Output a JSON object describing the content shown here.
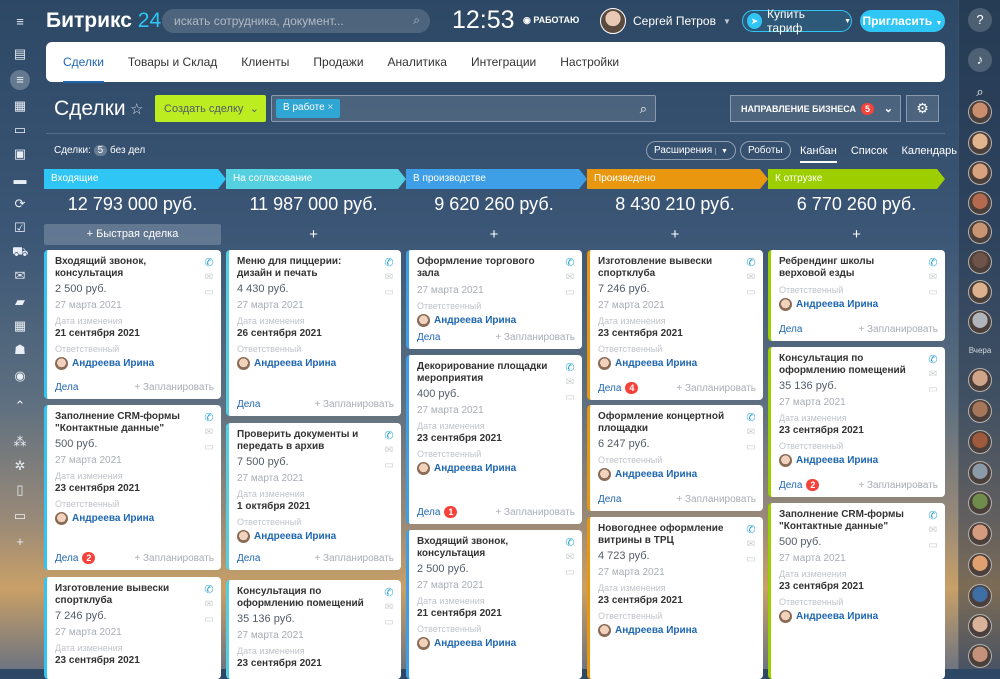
{
  "header": {
    "logo_main": "Битрикс",
    "logo_num": "24",
    "search_placeholder": "искать сотрудника, документ...",
    "clock": "12:53",
    "work_status": "РАБОТАЮ",
    "user_name": "Сергей Петров",
    "buy_label": "Купить тариф",
    "invite_label": "Пригласить"
  },
  "nav": {
    "tabs": [
      "Сделки",
      "Товары и Склад",
      "Клиенты",
      "Продажи",
      "Аналитика",
      "Интеграции",
      "Настройки"
    ]
  },
  "toolbar": {
    "title": "Сделки",
    "create_label": "Создать сделку",
    "filter_chip": "В работе",
    "direction_label": "НАПРАВЛЕНИЕ БИЗНЕСА",
    "direction_badge": "5",
    "count_label": "Сделки:",
    "count_value": "5",
    "count_suffix": "без дел",
    "extensions_label": "Расширения",
    "robots_label": "Роботы",
    "views": [
      "Канбан",
      "Список",
      "Календарь"
    ]
  },
  "right_sidebar": {
    "yesterday_label": "Вчера"
  },
  "quick_deal_label": "+ Быстрая сделка",
  "add_label": "+",
  "card_labels": {
    "changed": "Дата изменения",
    "responsible": "Ответственный",
    "tasks": "Дела",
    "plan": "+ Запланировать"
  },
  "columns": [
    {
      "name": "Входящие",
      "color": "#2fc6f6",
      "sum": "12 793 000 руб.",
      "cards": [
        {
          "title": "Входящий звонок, консультация",
          "amount": "2 500 руб.",
          "created": "27 марта 2021",
          "changed": "21 сентября 2021",
          "person": "Андреева Ирина",
          "badge": ""
        },
        {
          "title": "Заполнение CRM-формы \"Контактные данные\"",
          "amount": "500 руб.",
          "created": "27 марта 2021",
          "changed": "23 сентября 2021",
          "person": "Андреева Ирина",
          "badge": "2"
        },
        {
          "title": "Изготовление вывески спортклуба",
          "amount": "7 246 руб.",
          "created": "27 марта 2021",
          "changed": "23 сентября 2021",
          "person": "",
          "badge": ""
        }
      ]
    },
    {
      "name": "На согласование",
      "color": "#55d0e0",
      "sum": "11 987 000 руб.",
      "cards": [
        {
          "title": "Меню для пиццерии: дизайн и печать",
          "amount": "4 430 руб.",
          "created": "27 марта 2021",
          "changed": "26 сентября 2021",
          "person": "Андреева Ирина",
          "badge": ""
        },
        {
          "title": "Проверить документы и передать в архив",
          "amount": "7 500 руб.",
          "created": "27 марта 2021",
          "changed": "1 октября 2021",
          "person": "Андреева Ирина",
          "badge": ""
        },
        {
          "title": "Консультация по оформлению помещений",
          "amount": "35 136 руб.",
          "created": "27 марта 2021",
          "changed": "23 сентября 2021",
          "person": "",
          "badge": ""
        }
      ]
    },
    {
      "name": "В производстве",
      "color": "#3e9ee6",
      "sum": "9 620 260 руб.",
      "cards": [
        {
          "title": "Оформление торгового зала",
          "amount": "",
          "created": "27 марта 2021",
          "changed": "",
          "person": "Андреева Ирина",
          "badge": ""
        },
        {
          "title": "Декорирование площадки мероприятия",
          "amount": "400 руб.",
          "created": "27 марта 2021",
          "changed": "23 сентября 2021",
          "person": "Андреева Ирина",
          "badge": "1"
        },
        {
          "title": "Входящий звонок, консультация",
          "amount": "2 500 руб.",
          "created": "27 марта 2021",
          "changed": "21 сентября 2021",
          "person": "Андреева Ирина",
          "badge": ""
        }
      ]
    },
    {
      "name": "Произведено",
      "color": "#e8970f",
      "sum": "8 430 210 руб.",
      "cards": [
        {
          "title": "Изготовление вывески спортклуба",
          "amount": "7 246 руб.",
          "created": "27 марта 2021",
          "changed": "23 сентября 2021",
          "person": "Андреева Ирина",
          "badge": "4"
        },
        {
          "title": "Оформление концертной площадки",
          "amount": "6 247 руб.",
          "created": "",
          "changed": "",
          "person": "Андреева Ирина",
          "badge": ""
        },
        {
          "title": "Новогоднее оформление витрины в ТРЦ",
          "amount": "4 723 руб.",
          "created": "27 марта 2021",
          "changed": "23 сентября 2021",
          "person": "Андреева Ирина",
          "badge": ""
        }
      ]
    },
    {
      "name": "К отгрузке",
      "color": "#9dcf00",
      "sum": "6 770 260 руб.",
      "cards": [
        {
          "title": "Ребрендинг школы верховой езды",
          "amount": "",
          "created": "",
          "changed": "",
          "person": "Андреева Ирина",
          "badge": ""
        },
        {
          "title": "Консультация по оформлению помещений",
          "amount": "35 136 руб.",
          "created": "27 марта 2021",
          "changed": "23 сентября 2021",
          "person": "Андреева Ирина",
          "badge": "2"
        },
        {
          "title": "Заполнение CRM-формы \"Контактные данные\"",
          "amount": "500 руб.",
          "created": "27 марта 2021",
          "changed": "23 сентября 2021",
          "person": "Андреева Ирина",
          "badge": "2"
        }
      ]
    }
  ]
}
